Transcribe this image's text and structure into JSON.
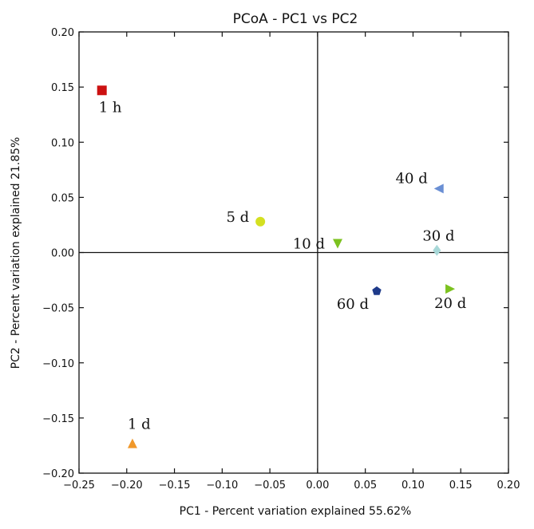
{
  "chart_data": {
    "type": "scatter",
    "title": "PCoA - PC1 vs PC2",
    "xlabel": "PC1 - Percent variation explained 55.62%",
    "ylabel": "PC2 - Percent variation explained 21.85%",
    "xlim": [
      -0.25,
      0.2
    ],
    "ylim": [
      -0.2,
      0.2
    ],
    "grid": false,
    "x_ticks": [
      -0.25,
      -0.2,
      -0.15,
      -0.1,
      -0.05,
      0.0,
      0.05,
      0.1,
      0.15,
      0.2
    ],
    "x_tick_labels": [
      "−0.25",
      "−0.20",
      "−0.15",
      "−0.10",
      "−0.05",
      "0.00",
      "0.05",
      "0.10",
      "0.15",
      "0.20"
    ],
    "y_ticks": [
      0.2,
      0.15,
      0.1,
      0.05,
      0.0,
      -0.05,
      -0.1,
      -0.15,
      -0.2
    ],
    "y_tick_labels": [
      "0.20",
      "0.15",
      "0.10",
      "0.05",
      "0.00",
      "−0.05",
      "−0.10",
      "−0.15",
      "−0.20"
    ],
    "points": [
      {
        "label": "1 h",
        "x": -0.226,
        "y": 0.147,
        "marker": "square",
        "color": "#cc1111"
      },
      {
        "label": "1 d",
        "x": -0.194,
        "y": -0.173,
        "marker": "triangle-up",
        "color": "#f0982a"
      },
      {
        "label": "5 d",
        "x": -0.06,
        "y": 0.028,
        "marker": "circle",
        "color": "#d4e021"
      },
      {
        "label": "10 d",
        "x": 0.021,
        "y": 0.008,
        "marker": "triangle-down",
        "color": "#7cc21f"
      },
      {
        "label": "20 d",
        "x": 0.139,
        "y": -0.033,
        "marker": "triangle-right",
        "color": "#7cc21f"
      },
      {
        "label": "30 d",
        "x": 0.125,
        "y": 0.002,
        "marker": "diamond",
        "color": "#a8d8d8"
      },
      {
        "label": "40 d",
        "x": 0.127,
        "y": 0.058,
        "marker": "triangle-left",
        "color": "#6a8fd4"
      },
      {
        "label": "60 d",
        "x": 0.062,
        "y": -0.035,
        "marker": "pentagon",
        "color": "#1e3a8a"
      }
    ]
  }
}
